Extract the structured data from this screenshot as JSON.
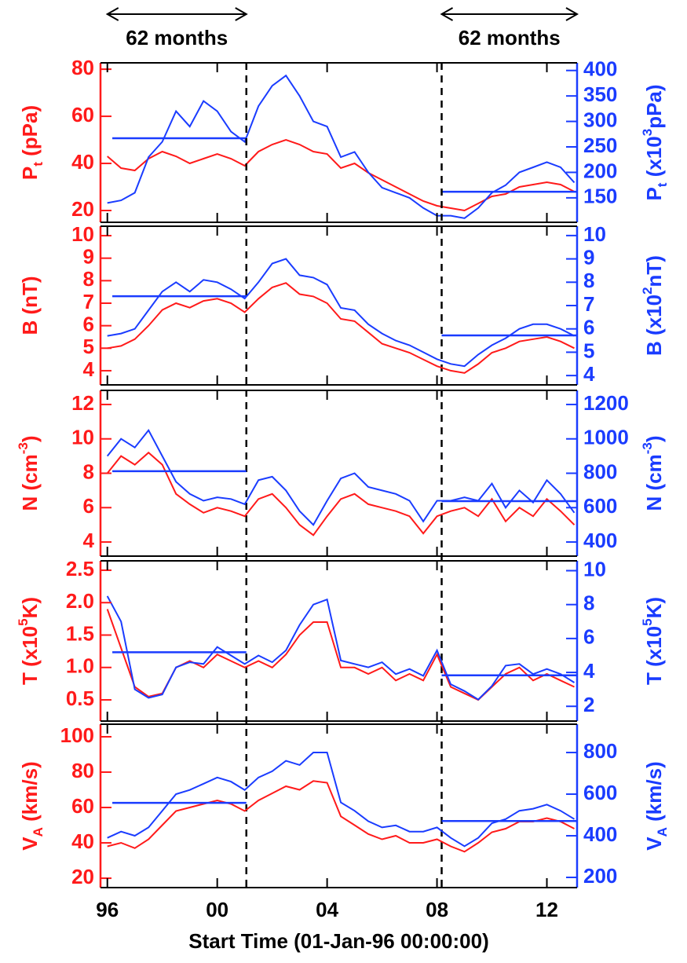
{
  "chart_data": [
    {
      "type": "line",
      "xlim": [
        1995.75,
        2013.1
      ],
      "annotations": [
        {
          "text": "62 months",
          "x": [
            1996,
            2001.06
          ]
        },
        {
          "text": "62 months",
          "x": [
            2008.17,
            2013.1
          ]
        }
      ],
      "vlines": [
        2001.06,
        2008.17
      ],
      "ylabel": [
        {
          "text": "P"
        },
        {
          "text": "t",
          "shift": "sub"
        },
        {
          "text": " (pPa)"
        }
      ],
      "y2label": [
        {
          "text": "P"
        },
        {
          "text": "t",
          "shift": "sub"
        },
        {
          "text": " (x10"
        },
        {
          "text": "3",
          "shift": "super"
        },
        {
          "text": "pPa)"
        }
      ],
      "ylim": [
        15,
        82.7
      ],
      "yticks": [
        20,
        40,
        60,
        80
      ],
      "y2lim": [
        102,
        415
      ],
      "y2ticks": [
        150,
        200,
        250,
        300,
        350,
        400
      ],
      "x": [
        1996,
        1996.5,
        1997,
        1997.5,
        1998,
        1998.5,
        1999,
        1999.5,
        2000,
        2000.5,
        2001,
        2001.5,
        2002,
        2002.5,
        2003,
        2003.5,
        2004,
        2004.5,
        2005,
        2005.5,
        2006,
        2006.5,
        2007,
        2007.5,
        2008,
        2008.5,
        2009,
        2009.5,
        2010,
        2010.5,
        2011,
        2011.5,
        2012,
        2012.5,
        2013
      ],
      "series": [
        {
          "color": "#ff1a1a",
          "values": [
            43,
            38,
            37,
            42,
            45,
            43,
            40,
            42,
            44,
            42,
            39,
            45,
            48,
            50,
            48,
            45,
            44,
            38,
            40,
            36,
            33,
            30,
            27,
            24,
            22,
            21,
            20,
            23,
            26,
            27,
            30,
            31,
            32,
            31,
            28
          ]
        },
        {
          "color": "#1a3cff",
          "axis": "y2",
          "values": [
            140,
            145,
            160,
            230,
            260,
            320,
            290,
            340,
            320,
            280,
            260,
            330,
            370,
            390,
            350,
            300,
            290,
            230,
            240,
            200,
            170,
            160,
            150,
            130,
            115,
            115,
            110,
            130,
            160,
            175,
            200,
            210,
            220,
            210,
            180
          ]
        }
      ],
      "mean_lines": [
        {
          "x": [
            1996.18,
            2001.06
          ],
          "value": 267
        },
        {
          "x": [
            2008.17,
            2013.1
          ],
          "value": 162
        }
      ]
    },
    {
      "type": "line",
      "xlim": [
        1995.75,
        2013.1
      ],
      "ylabel": [
        {
          "text": "B (nT)"
        }
      ],
      "y2label": [
        {
          "text": "B (x10"
        },
        {
          "text": "2",
          "shift": "super"
        },
        {
          "text": "nT)"
        }
      ],
      "ylim": [
        3.37,
        10.42
      ],
      "yticks": [
        4,
        5,
        6,
        7,
        8,
        9,
        10
      ],
      "y2lim": [
        3.6,
        10.4
      ],
      "y2ticks": [
        4,
        5,
        6,
        7,
        8,
        9,
        10
      ],
      "x": [
        1996,
        1996.5,
        1997,
        1997.5,
        1998,
        1998.5,
        1999,
        1999.5,
        2000,
        2000.5,
        2001,
        2001.5,
        2002,
        2002.5,
        2003,
        2003.5,
        2004,
        2004.5,
        2005,
        2005.5,
        2006,
        2006.5,
        2007,
        2007.5,
        2008,
        2008.5,
        2009,
        2009.5,
        2010,
        2010.5,
        2011,
        2011.5,
        2012,
        2012.5,
        2013
      ],
      "series": [
        {
          "color": "#ff1a1a",
          "values": [
            5.0,
            5.1,
            5.4,
            6.0,
            6.7,
            7.0,
            6.8,
            7.1,
            7.2,
            7.0,
            6.6,
            7.2,
            7.7,
            7.9,
            7.4,
            7.3,
            7.0,
            6.3,
            6.2,
            5.7,
            5.2,
            5.0,
            4.8,
            4.5,
            4.2,
            4.0,
            3.9,
            4.3,
            4.8,
            5.0,
            5.3,
            5.4,
            5.5,
            5.3,
            5.0
          ]
        },
        {
          "color": "#1a3cff",
          "axis": "y2",
          "values": [
            5.7,
            5.8,
            6.0,
            6.8,
            7.6,
            8.0,
            7.6,
            8.1,
            8.0,
            7.7,
            7.3,
            8.0,
            8.8,
            9.0,
            8.3,
            8.2,
            7.9,
            6.9,
            6.8,
            6.2,
            5.8,
            5.5,
            5.3,
            5.0,
            4.7,
            4.5,
            4.4,
            4.9,
            5.3,
            5.6,
            6.0,
            6.2,
            6.2,
            6.0,
            5.7
          ]
        }
      ],
      "mean_lines": [
        {
          "x": [
            1996.18,
            2001.06
          ],
          "value": 7.4
        },
        {
          "x": [
            2008.17,
            2013.1
          ],
          "value": 5.72
        }
      ]
    },
    {
      "type": "line",
      "xlim": [
        1995.75,
        2013.1
      ],
      "ylabel": [
        {
          "text": "N (cm"
        },
        {
          "text": "-3",
          "shift": "super"
        },
        {
          "text": ")"
        }
      ],
      "y2label": [
        {
          "text": "N (cm"
        },
        {
          "text": "-3",
          "shift": "super"
        },
        {
          "text": ")"
        }
      ],
      "ylim": [
        3.18,
        12.82
      ],
      "yticks": [
        4,
        6,
        8,
        10,
        12
      ],
      "y2lim": [
        318,
        1282
      ],
      "y2ticks": [
        400,
        600,
        800,
        1000,
        1200
      ],
      "x": [
        1996,
        1996.5,
        1997,
        1997.5,
        1998,
        1998.5,
        1999,
        1999.5,
        2000,
        2000.5,
        2001,
        2001.5,
        2002,
        2002.5,
        2003,
        2003.5,
        2004,
        2004.5,
        2005,
        2005.5,
        2006,
        2006.5,
        2007,
        2007.5,
        2008,
        2008.5,
        2009,
        2009.5,
        2010,
        2010.5,
        2011,
        2011.5,
        2012,
        2012.5,
        2013
      ],
      "series": [
        {
          "color": "#ff1a1a",
          "values": [
            8.0,
            9.0,
            8.5,
            9.2,
            8.5,
            6.8,
            6.2,
            5.7,
            6.0,
            5.8,
            5.5,
            6.5,
            6.8,
            6.0,
            5.0,
            4.4,
            5.5,
            6.5,
            6.8,
            6.2,
            6.0,
            5.8,
            5.5,
            4.5,
            5.5,
            5.8,
            6.0,
            5.5,
            6.5,
            5.2,
            6.0,
            5.5,
            6.5,
            5.8,
            5.0
          ]
        },
        {
          "color": "#1a3cff",
          "axis": "y2",
          "values": [
            900,
            1000,
            950,
            1050,
            900,
            750,
            680,
            640,
            660,
            650,
            620,
            760,
            780,
            700,
            580,
            500,
            640,
            770,
            800,
            720,
            700,
            680,
            640,
            520,
            640,
            640,
            660,
            640,
            740,
            600,
            700,
            630,
            760,
            680,
            570
          ]
        }
      ],
      "mean_lines": [
        {
          "x": [
            1996.18,
            2001.06
          ],
          "value": 812
        },
        {
          "x": [
            2008.17,
            2013.1
          ],
          "value": 638
        }
      ]
    },
    {
      "type": "line",
      "xlim": [
        1995.75,
        2013.1
      ],
      "ylabel": [
        {
          "text": "T (x10"
        },
        {
          "text": "5",
          "shift": "super"
        },
        {
          "text": "K)"
        }
      ],
      "y2label": [
        {
          "text": "T (x10"
        },
        {
          "text": "5",
          "shift": "super"
        },
        {
          "text": "K)"
        }
      ],
      "ylim": [
        0.173,
        2.645
      ],
      "yticks": [
        0.5,
        {
          "value": 1,
          "label": "1.0"
        },
        1.5,
        {
          "value": 2,
          "label": "2.0"
        },
        2.5
      ],
      "y2lim": [
        1.13,
        10.58
      ],
      "y2ticks": [
        2,
        4,
        6,
        8,
        10
      ],
      "x": [
        1996,
        1996.5,
        1997,
        1997.5,
        1998,
        1998.5,
        1999,
        1999.5,
        2000,
        2000.5,
        2001,
        2001.5,
        2002,
        2002.5,
        2003,
        2003.5,
        2004,
        2004.5,
        2005,
        2005.5,
        2006,
        2006.5,
        2007,
        2007.5,
        2008,
        2008.5,
        2009,
        2009.5,
        2010,
        2010.5,
        2011,
        2011.5,
        2012,
        2012.5,
        2013
      ],
      "series": [
        {
          "color": "#ff1a1a",
          "values": [
            1.9,
            1.3,
            0.7,
            0.55,
            0.6,
            1.0,
            1.1,
            1.0,
            1.2,
            1.1,
            1.0,
            1.1,
            1.0,
            1.2,
            1.5,
            1.7,
            1.7,
            1.0,
            1.0,
            0.9,
            1.0,
            0.8,
            0.9,
            0.8,
            1.2,
            0.7,
            0.6,
            0.5,
            0.7,
            0.9,
            1.0,
            0.8,
            0.9,
            0.8,
            0.7
          ]
        },
        {
          "color": "#1a3cff",
          "axis": "y2",
          "values": [
            8.5,
            7.0,
            3.0,
            2.5,
            2.7,
            4.3,
            4.6,
            4.5,
            5.5,
            5.0,
            4.5,
            5.0,
            4.6,
            5.3,
            6.8,
            8.0,
            8.3,
            4.7,
            4.5,
            4.3,
            4.6,
            3.9,
            4.2,
            3.8,
            5.3,
            3.3,
            2.9,
            2.4,
            3.2,
            4.4,
            4.5,
            3.9,
            4.2,
            3.9,
            3.4
          ]
        }
      ],
      "mean_lines": [
        {
          "x": [
            1996.18,
            2001.06
          ],
          "value": 5.19
        },
        {
          "x": [
            2008.17,
            2013.1
          ],
          "value": 3.83
        }
      ]
    },
    {
      "type": "line",
      "xlim": [
        1995.75,
        2013.1
      ],
      "xticks": [
        {
          "value": 1996,
          "label": "96"
        },
        {
          "value": 2000,
          "label": "00"
        },
        {
          "value": 2004,
          "label": "04"
        },
        {
          "value": 2008,
          "label": "08"
        },
        {
          "value": 2012,
          "label": "12"
        }
      ],
      "xlabel": "Start Time (01-Jan-96 00:00:00)",
      "ylabel": [
        {
          "text": "V"
        },
        {
          "text": "A",
          "shift": "sub"
        },
        {
          "text": " (km/s)"
        }
      ],
      "y2label": [
        {
          "text": "V"
        },
        {
          "text": "A",
          "shift": "sub"
        },
        {
          "text": " (km/s)"
        }
      ],
      "ylim": [
        14.7,
        107.1
      ],
      "yticks": [
        20,
        40,
        60,
        80,
        100
      ],
      "y2lim": [
        151,
        936
      ],
      "y2ticks": [
        200,
        400,
        600,
        800
      ],
      "x": [
        1996,
        1996.5,
        1997,
        1997.5,
        1998,
        1998.5,
        1999,
        1999.5,
        2000,
        2000.5,
        2001,
        2001.5,
        2002,
        2002.5,
        2003,
        2003.5,
        2004,
        2004.5,
        2005,
        2005.5,
        2006,
        2006.5,
        2007,
        2007.5,
        2008,
        2008.5,
        2009,
        2009.5,
        2010,
        2010.5,
        2011,
        2011.5,
        2012,
        2012.5,
        2013
      ],
      "series": [
        {
          "color": "#ff1a1a",
          "values": [
            38,
            40,
            37,
            42,
            50,
            58,
            60,
            62,
            64,
            62,
            58,
            64,
            68,
            72,
            70,
            75,
            74,
            55,
            50,
            45,
            42,
            44,
            40,
            40,
            42,
            38,
            35,
            40,
            46,
            48,
            52,
            52,
            54,
            52,
            48
          ]
        },
        {
          "color": "#1a3cff",
          "axis": "y2",
          "values": [
            390,
            420,
            400,
            440,
            520,
            600,
            620,
            650,
            680,
            660,
            620,
            680,
            710,
            760,
            740,
            800,
            800,
            560,
            520,
            470,
            440,
            450,
            420,
            420,
            440,
            390,
            350,
            390,
            460,
            480,
            520,
            530,
            550,
            520,
            480
          ]
        }
      ],
      "mean_lines": [
        {
          "x": [
            1996.18,
            2001.06
          ],
          "value": 558
        },
        {
          "x": [
            2008.17,
            2013.1
          ],
          "value": 471
        }
      ]
    }
  ]
}
